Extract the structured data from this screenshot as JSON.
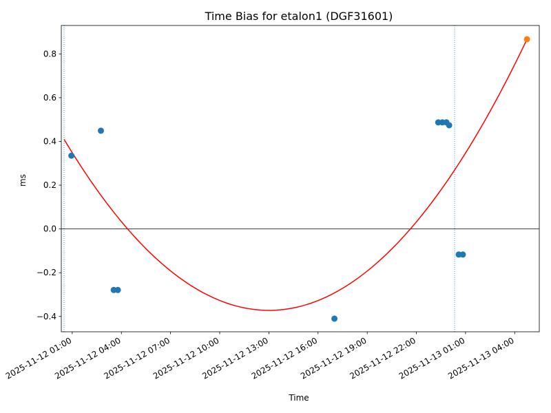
{
  "chart_data": {
    "type": "scatter",
    "title": "Time Bias for etalon1 (DGF31601)",
    "xlabel": "Time",
    "ylabel": "ms",
    "x_axis_type": "datetime",
    "xlim": [
      "2025-11-12 00:20",
      "2025-11-13 05:30"
    ],
    "ylim": [
      -0.47,
      0.93
    ],
    "x_tick_labels": [
      "2025-11-12 01:00",
      "2025-11-12 04:00",
      "2025-11-12 07:00",
      "2025-11-12 10:00",
      "2025-11-12 13:00",
      "2025-11-12 16:00",
      "2025-11-12 19:00",
      "2025-11-12 22:00",
      "2025-11-13 01:00",
      "2025-11-13 04:00"
    ],
    "y_ticks": [
      -0.4,
      -0.2,
      0.0,
      0.2,
      0.4,
      0.6,
      0.8
    ],
    "y_tick_labels": [
      "−0.4",
      "−0.2",
      "0.0",
      "0.2",
      "0.4",
      "0.6",
      "0.8"
    ],
    "grid": false,
    "horizontal_reference_line": 0.0,
    "vertical_reference_lines": [
      "2025-11-12 00:30",
      "2025-11-13 00:20"
    ],
    "series": [
      {
        "kind": "scatter",
        "color": "#1f77b4",
        "points": [
          {
            "x": "2025-11-12 00:57",
            "y": 0.335
          },
          {
            "x": "2025-11-12 02:45",
            "y": 0.449
          },
          {
            "x": "2025-11-12 03:32",
            "y": -0.279
          },
          {
            "x": "2025-11-12 03:47",
            "y": -0.279
          },
          {
            "x": "2025-11-12 17:00",
            "y": -0.41
          },
          {
            "x": "2025-11-12 23:20",
            "y": 0.487
          },
          {
            "x": "2025-11-12 23:35",
            "y": 0.487
          },
          {
            "x": "2025-11-12 23:50",
            "y": 0.487
          },
          {
            "x": "2025-11-13 00:00",
            "y": 0.474
          },
          {
            "x": "2025-11-13 00:35",
            "y": -0.117
          },
          {
            "x": "2025-11-13 00:50",
            "y": -0.117
          }
        ]
      },
      {
        "kind": "scatter",
        "color": "#ff7f0e",
        "points": [
          {
            "x": "2025-11-13 04:45",
            "y": 0.867
          }
        ]
      },
      {
        "kind": "line",
        "color": "#ff0000",
        "points": [
          {
            "x": "2025-11-12 00:30",
            "y": 0.41
          },
          {
            "x": "2025-11-12 13:10",
            "y": -0.372
          },
          {
            "x": "2025-11-13 04:45",
            "y": 0.867
          }
        ]
      }
    ]
  }
}
